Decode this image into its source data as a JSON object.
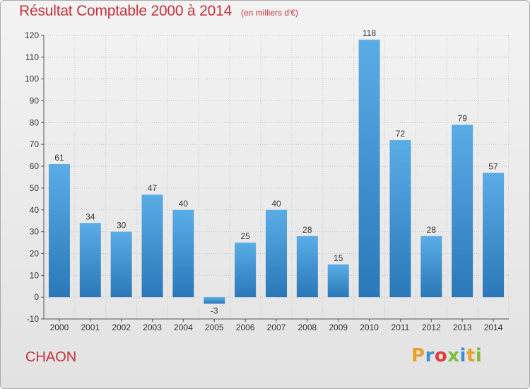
{
  "header": {
    "title": "Résultat Comptable 2000 à 2014",
    "subtitle": "(en milliers d'€)"
  },
  "footer": {
    "commune": "CHAON",
    "logo": {
      "letters": [
        "P",
        "r",
        "o",
        "x",
        "i",
        "t",
        "i"
      ],
      "colors": [
        "#e8a02c",
        "#3b8fd4",
        "#e33b3b",
        "#7cbd3c",
        "#3b8fd4",
        "#e8a02c",
        "#7cbd3c"
      ]
    }
  },
  "chart_data": {
    "type": "bar",
    "title": "Résultat Comptable 2000 à 2014",
    "subtitle": "(en milliers d'€)",
    "categories": [
      "2000",
      "2001",
      "2002",
      "2003",
      "2004",
      "2005",
      "2006",
      "2007",
      "2008",
      "2009",
      "2010",
      "2011",
      "2012",
      "2013",
      "2014"
    ],
    "values": [
      61,
      34,
      30,
      47,
      40,
      -3,
      25,
      40,
      28,
      15,
      118,
      72,
      28,
      79,
      57
    ],
    "ylim": [
      -10,
      120
    ],
    "yticks": [
      -10,
      0,
      10,
      20,
      30,
      40,
      50,
      60,
      70,
      80,
      90,
      100,
      110,
      120
    ],
    "grid": true,
    "legend": "none",
    "bar_color_top": "#5aace6",
    "bar_color_bottom": "#2a78b8"
  }
}
